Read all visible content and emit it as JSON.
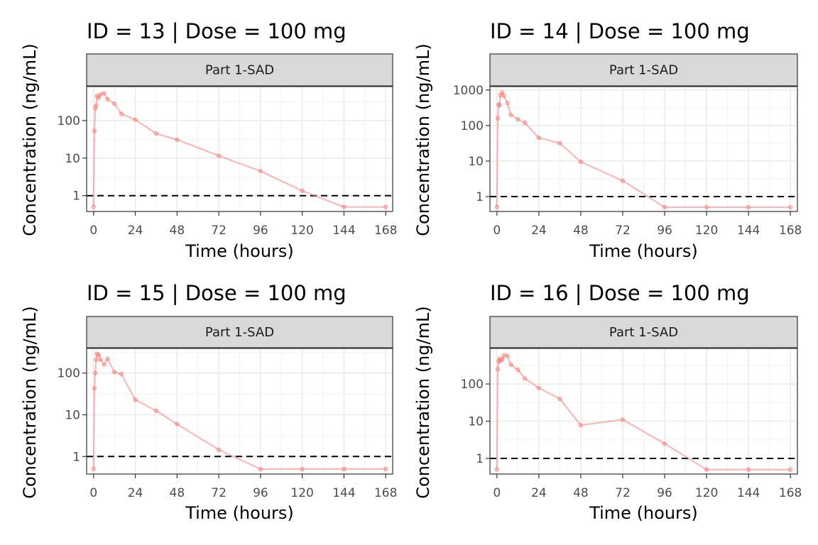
{
  "chart_data": [
    {
      "type": "line",
      "title": "ID = 13 | Dose = 100 mg",
      "facet": "Part 1-SAD",
      "xlabel": "Time (hours)",
      "ylabel": "Concentration (ng/mL)",
      "y_scale": "log10",
      "xlim": [
        -4,
        172
      ],
      "ylim": [
        0.38,
        800
      ],
      "x_ticks": [
        0,
        24,
        48,
        72,
        96,
        120,
        144,
        168
      ],
      "y_ticks": [
        1,
        10,
        100
      ],
      "reference_line": {
        "y": 1,
        "style": "dashed"
      },
      "color": "#F8766D",
      "x": [
        0,
        0.5,
        1,
        1.5,
        2,
        3,
        4,
        6,
        8,
        12,
        16,
        24,
        36,
        48,
        72,
        96,
        120,
        144,
        168
      ],
      "y": [
        0.5,
        53,
        210,
        250,
        450,
        400,
        490,
        530,
        370,
        280,
        150,
        105,
        45,
        31,
        11.5,
        4.5,
        1.35,
        0.5,
        0.5
      ]
    },
    {
      "type": "line",
      "title": "ID = 14 | Dose = 100 mg",
      "facet": "Part 1-SAD",
      "xlabel": "Time (hours)",
      "ylabel": "Concentration (ng/mL)",
      "y_scale": "log10",
      "xlim": [
        -4,
        172
      ],
      "ylim": [
        0.38,
        1250
      ],
      "x_ticks": [
        0,
        24,
        48,
        72,
        96,
        120,
        144,
        168
      ],
      "y_ticks": [
        1,
        10,
        100,
        1000
      ],
      "reference_line": {
        "y": 1,
        "style": "dashed"
      },
      "color": "#F8766D",
      "x": [
        0,
        0.5,
        1,
        1.5,
        2,
        3,
        4,
        6,
        8,
        12,
        16,
        24,
        36,
        48,
        72,
        96,
        120,
        144,
        168
      ],
      "y": [
        0.5,
        160,
        390,
        380,
        720,
        850,
        690,
        430,
        200,
        150,
        120,
        45,
        32,
        9.5,
        2.8,
        0.5,
        0.5,
        0.5,
        0.5
      ]
    },
    {
      "type": "line",
      "title": "ID = 15 | Dose = 100 mg",
      "facet": "Part 1-SAD",
      "xlabel": "Time (hours)",
      "ylabel": "Concentration (ng/mL)",
      "y_scale": "log10",
      "xlim": [
        -4,
        172
      ],
      "ylim": [
        0.38,
        390
      ],
      "x_ticks": [
        0,
        24,
        48,
        72,
        96,
        120,
        144,
        168
      ],
      "y_ticks": [
        1,
        10,
        100
      ],
      "reference_line": {
        "y": 1,
        "style": "dashed"
      },
      "color": "#F8766D",
      "x": [
        0,
        0.5,
        1,
        1.5,
        2,
        3,
        4,
        6,
        8,
        12,
        16,
        24,
        36,
        48,
        72,
        96,
        120,
        144,
        168
      ],
      "y": [
        0.5,
        43,
        100,
        210,
        290,
        270,
        210,
        160,
        220,
        105,
        95,
        23,
        12.5,
        6,
        1.45,
        0.5,
        0.5,
        0.5,
        0.5
      ]
    },
    {
      "type": "line",
      "title": "ID = 16 | Dose = 100 mg",
      "facet": "Part 1-SAD",
      "xlabel": "Time (hours)",
      "ylabel": "Concentration (ng/mL)",
      "y_scale": "log10",
      "xlim": [
        -4,
        172
      ],
      "ylim": [
        0.38,
        900
      ],
      "x_ticks": [
        0,
        24,
        48,
        72,
        96,
        120,
        144,
        168
      ],
      "y_ticks": [
        1,
        10,
        100
      ],
      "reference_line": {
        "y": 1,
        "style": "dashed"
      },
      "color": "#F8766D",
      "x": [
        0,
        0.5,
        1,
        1.5,
        2,
        3,
        4,
        6,
        8,
        12,
        16,
        24,
        36,
        48,
        72,
        96,
        120,
        144,
        168
      ],
      "y": [
        0.5,
        250,
        400,
        480,
        420,
        450,
        580,
        570,
        330,
        240,
        140,
        78,
        40,
        7.8,
        11,
        2.5,
        0.5,
        0.5,
        0.5
      ]
    }
  ]
}
